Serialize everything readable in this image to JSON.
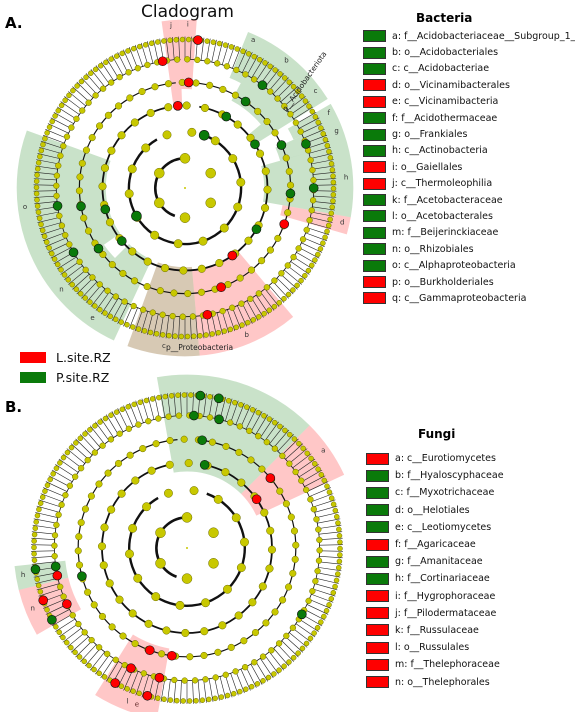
{
  "figure": {
    "panel_a": "A.",
    "panel_b": "B.",
    "title": "Cladogram"
  },
  "groups": [
    {
      "name": "L.site.RZ",
      "color": "#ff0000"
    },
    {
      "name": "P.site.RZ",
      "color": "#0a7a0a"
    }
  ],
  "bacteria": {
    "legend_title": "Bacteria",
    "phylum_labels": [
      "p__Acidobacteriota",
      "p__Proteobacteria"
    ],
    "items": [
      {
        "key": "a",
        "label": "a: f__Acidobacteriaceae__Subgroup_1_",
        "group": "P"
      },
      {
        "key": "b",
        "label": "b: o__Acidobacteriales",
        "group": "P"
      },
      {
        "key": "c",
        "label": "c: c__Acidobacteriae",
        "group": "P"
      },
      {
        "key": "d",
        "label": "d: o__Vicinamibacterales",
        "group": "L"
      },
      {
        "key": "e",
        "label": "e: c__Vicinamibacteria",
        "group": "L"
      },
      {
        "key": "f",
        "label": "f: f__Acidothermaceae",
        "group": "P"
      },
      {
        "key": "g",
        "label": "g: o__Frankiales",
        "group": "P"
      },
      {
        "key": "h",
        "label": "h: c__Actinobacteria",
        "group": "P"
      },
      {
        "key": "i",
        "label": "i: o__Gaiellales",
        "group": "L"
      },
      {
        "key": "j",
        "label": "j: c__Thermoleophilia",
        "group": "L"
      },
      {
        "key": "k",
        "label": "k: f__Acetobacteraceae",
        "group": "P"
      },
      {
        "key": "l",
        "label": "l: o__Acetobacterales",
        "group": "P"
      },
      {
        "key": "m",
        "label": "m: f__Beijerinckiaceae",
        "group": "P"
      },
      {
        "key": "n",
        "label": "n: o__Rhizobiales",
        "group": "P"
      },
      {
        "key": "o",
        "label": "o: c__Alphaproteobacteria",
        "group": "P"
      },
      {
        "key": "p",
        "label": "p: o__Burkholderiales",
        "group": "L"
      },
      {
        "key": "q",
        "label": "q: c__Gammaproteobacteria",
        "group": "L"
      }
    ]
  },
  "fungi": {
    "legend_title": "Fungi",
    "items": [
      {
        "key": "a",
        "label": "a: c__Eurotiomycetes",
        "group": "L"
      },
      {
        "key": "b",
        "label": "b: f__Hyaloscyphaceae",
        "group": "P"
      },
      {
        "key": "c",
        "label": "c: f__Myxotrichaceae",
        "group": "P"
      },
      {
        "key": "d",
        "label": "d: o__Helotiales",
        "group": "P"
      },
      {
        "key": "e",
        "label": "e: c__Leotiomycetes",
        "group": "P"
      },
      {
        "key": "f",
        "label": "f: f__Agaricaceae",
        "group": "L"
      },
      {
        "key": "g",
        "label": "g: f__Amanitaceae",
        "group": "P"
      },
      {
        "key": "h",
        "label": "h: f__Cortinariaceae",
        "group": "P"
      },
      {
        "key": "i",
        "label": "i: f__Hygrophoraceae",
        "group": "L"
      },
      {
        "key": "j",
        "label": "j: f__Pilodermataceae",
        "group": "L"
      },
      {
        "key": "k",
        "label": "k: f__Russulaceae",
        "group": "L"
      },
      {
        "key": "l",
        "label": "l: o__Russulales",
        "group": "L"
      },
      {
        "key": "m",
        "label": "m: f__Thelephoraceae",
        "group": "L"
      },
      {
        "key": "n",
        "label": "n: o__Thelephorales",
        "group": "L"
      }
    ]
  }
}
